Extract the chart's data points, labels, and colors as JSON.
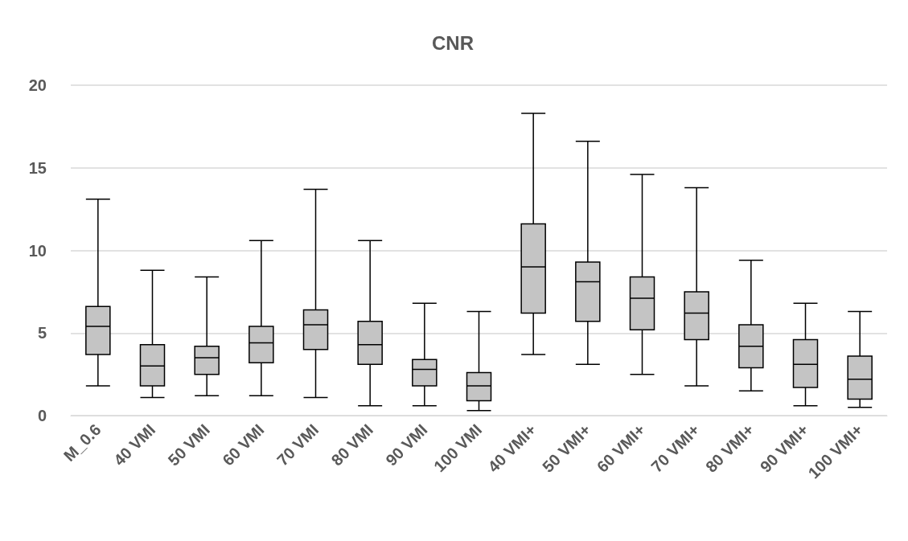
{
  "chart_data": {
    "type": "box",
    "title": "CNR",
    "categories": [
      "M_0.6",
      "40 VMI",
      "50 VMI",
      "60 VMI",
      "70 VMI",
      "80 VMI",
      "90 VMI",
      "100 VMI",
      "40 VMI+",
      "50 VMI+",
      "60 VMI+",
      "70 VMI+",
      "80 VMI+",
      "90 VMI+",
      "100 VMI+"
    ],
    "series": [
      {
        "color": "#c4c4c4",
        "boxes": [
          {
            "low": 1.8,
            "q1": 3.7,
            "median": 5.4,
            "q3": 6.6,
            "high": 13.1
          },
          {
            "low": 1.1,
            "q1": 1.8,
            "median": 3.0,
            "q3": 4.3,
            "high": 8.8
          },
          {
            "low": 1.2,
            "q1": 2.5,
            "median": 3.5,
            "q3": 4.2,
            "high": 8.4
          },
          {
            "low": 1.2,
            "q1": 3.2,
            "median": 4.4,
            "q3": 5.4,
            "high": 10.6
          },
          {
            "low": 1.1,
            "q1": 4.0,
            "median": 5.5,
            "q3": 6.4,
            "high": 13.7
          },
          {
            "low": 0.6,
            "q1": 3.1,
            "median": 4.3,
            "q3": 5.7,
            "high": 10.6
          },
          {
            "low": 0.6,
            "q1": 1.8,
            "median": 2.8,
            "q3": 3.4,
            "high": 6.8
          },
          {
            "low": 0.3,
            "q1": 0.9,
            "median": 1.8,
            "q3": 2.6,
            "high": 6.3
          },
          {
            "low": 3.7,
            "q1": 6.2,
            "median": 9.0,
            "q3": 11.6,
            "high": 18.3
          },
          {
            "low": 3.1,
            "q1": 5.7,
            "median": 8.1,
            "q3": 9.3,
            "high": 16.6
          },
          {
            "low": 2.5,
            "q1": 5.2,
            "median": 7.1,
            "q3": 8.4,
            "high": 14.6
          },
          {
            "low": 1.8,
            "q1": 4.6,
            "median": 6.2,
            "q3": 7.5,
            "high": 13.8
          },
          {
            "low": 1.5,
            "q1": 2.9,
            "median": 4.2,
            "q3": 5.5,
            "high": 9.4
          },
          {
            "low": 0.6,
            "q1": 1.7,
            "median": 3.1,
            "q3": 4.6,
            "high": 6.8
          },
          {
            "low": 0.5,
            "q1": 1.0,
            "median": 2.2,
            "q3": 3.6,
            "high": 6.3
          }
        ]
      }
    ],
    "ylim": [
      0,
      20
    ],
    "yticks": [
      0,
      5,
      10,
      15,
      20
    ],
    "grid": "y"
  }
}
